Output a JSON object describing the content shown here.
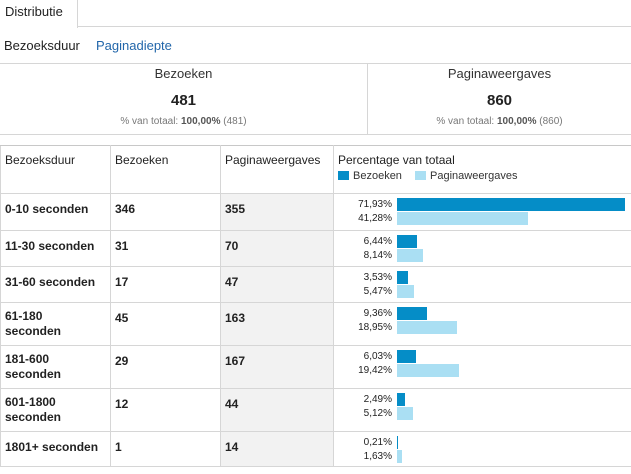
{
  "tabs": [
    {
      "label": "Distributie"
    }
  ],
  "subnav": {
    "active": "Bezoeksduur",
    "link": "Paginadiepte"
  },
  "summary": {
    "visits": {
      "label": "Bezoeken",
      "value": "481",
      "sub_prefix": "% van totaal:",
      "sub_bold": "100,00%",
      "sub_suffix": "(481)"
    },
    "pageviews": {
      "label": "Paginaweergaves",
      "value": "860",
      "sub_prefix": "% van totaal:",
      "sub_bold": "100,00%",
      "sub_suffix": "(860)"
    }
  },
  "table": {
    "headers": {
      "duration": "Bezoeksduur",
      "visits": "Bezoeken",
      "pageviews": "Paginaweergaves",
      "percentage": "Percentage van totaal"
    },
    "legend": {
      "visits": "Bezoeken",
      "pageviews": "Paginaweergaves"
    },
    "colors": {
      "visits": "#058dc7",
      "pageviews": "#aadff3"
    },
    "rows": [
      {
        "duration": "0-10 seconden",
        "visits": "346",
        "pageviews": "355",
        "pct_visits": "71,93%",
        "pct_pageviews": "41,28%",
        "frac_visits": 0.7193,
        "frac_pageviews": 0.4128
      },
      {
        "duration": "11-30 seconden",
        "visits": "31",
        "pageviews": "70",
        "pct_visits": "6,44%",
        "pct_pageviews": "8,14%",
        "frac_visits": 0.0644,
        "frac_pageviews": 0.0814
      },
      {
        "duration": "31-60 seconden",
        "visits": "17",
        "pageviews": "47",
        "pct_visits": "3,53%",
        "pct_pageviews": "5,47%",
        "frac_visits": 0.0353,
        "frac_pageviews": 0.0547
      },
      {
        "duration": "61-180 seconden",
        "visits": "45",
        "pageviews": "163",
        "pct_visits": "9,36%",
        "pct_pageviews": "18,95%",
        "frac_visits": 0.0936,
        "frac_pageviews": 0.1895
      },
      {
        "duration": "181-600 seconden",
        "visits": "29",
        "pageviews": "167",
        "pct_visits": "6,03%",
        "pct_pageviews": "19,42%",
        "frac_visits": 0.0603,
        "frac_pageviews": 0.1942
      },
      {
        "duration": "601-1800 seconden",
        "visits": "12",
        "pageviews": "44",
        "pct_visits": "2,49%",
        "pct_pageviews": "5,12%",
        "frac_visits": 0.0249,
        "frac_pageviews": 0.0512
      },
      {
        "duration": "1801+ seconden",
        "visits": "1",
        "pageviews": "14",
        "pct_visits": "0,21%",
        "pct_pageviews": "1,63%",
        "frac_visits": 0.0021,
        "frac_pageviews": 0.0163
      }
    ]
  }
}
